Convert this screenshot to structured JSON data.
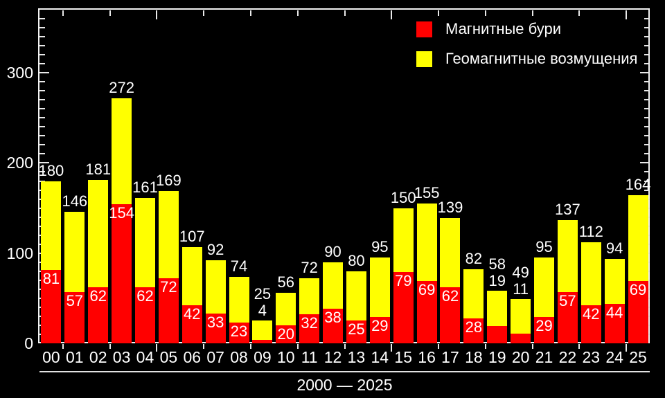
{
  "colors": {
    "background": "#000000",
    "frame": "#f2f2f2",
    "storms_red": "#ff0000",
    "disturbances_yellow": "#ffff00",
    "text": "#ffffff"
  },
  "legend": {
    "items": [
      {
        "label": "Магнитные бури",
        "color": "#ff0000"
      },
      {
        "label": "Геомагнитные возмущения",
        "color": "#ffff00"
      }
    ]
  },
  "chart_data": {
    "type": "bar",
    "stacked": true,
    "title": "",
    "xlabel": "2000 — 2025",
    "ylabel": "",
    "ylim": [
      0,
      370
    ],
    "y_major_ticks": [
      0,
      100,
      200,
      300
    ],
    "y_minor_step": 10,
    "grid": false,
    "legend_position": "top-right",
    "categories": [
      "00",
      "01",
      "02",
      "03",
      "04",
      "05",
      "06",
      "07",
      "08",
      "09",
      "10",
      "11",
      "12",
      "13",
      "14",
      "15",
      "16",
      "17",
      "18",
      "19",
      "20",
      "21",
      "22",
      "23",
      "24",
      "25"
    ],
    "series": [
      {
        "name": "Магнитные бури",
        "color": "#ff0000",
        "values": [
          81,
          57,
          62,
          154,
          62,
          72,
          42,
          33,
          23,
          4,
          20,
          32,
          38,
          25,
          29,
          79,
          69,
          62,
          28,
          19,
          11,
          29,
          57,
          42,
          44,
          69
        ]
      },
      {
        "name": "Геомагнитные возмущения",
        "color": "#ffff00",
        "values": [
          99,
          89,
          119,
          118,
          99,
          97,
          65,
          59,
          51,
          21,
          36,
          40,
          52,
          55,
          66,
          71,
          86,
          77,
          54,
          39,
          38,
          66,
          80,
          70,
          50,
          95
        ]
      }
    ],
    "totals": [
      180,
      146,
      181,
      272,
      161,
      169,
      107,
      92,
      74,
      25,
      56,
      72,
      90,
      80,
      95,
      150,
      155,
      139,
      82,
      58,
      49,
      95,
      137,
      112,
      94,
      164
    ],
    "red_label_outside_indices": [
      9,
      19,
      20
    ]
  }
}
